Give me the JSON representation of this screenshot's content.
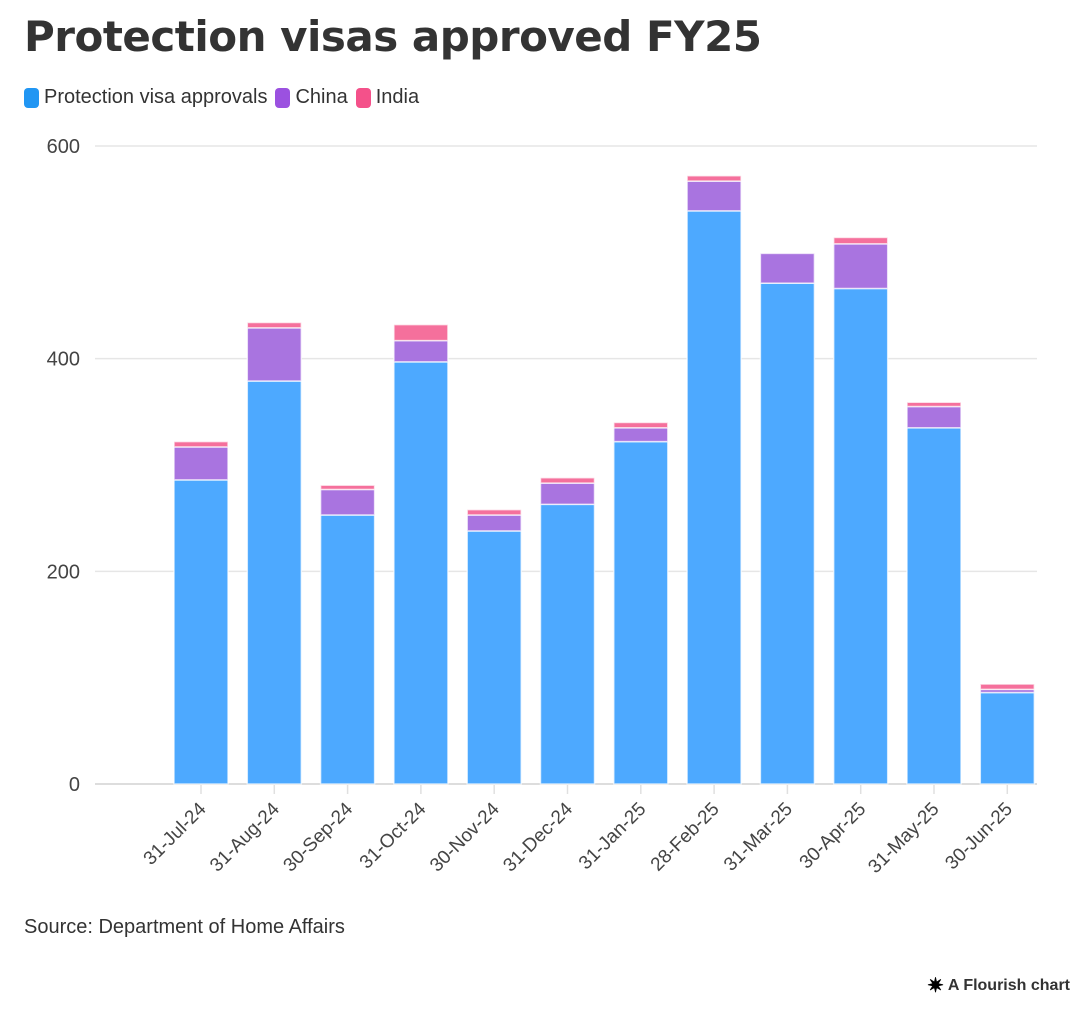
{
  "title": "Protection visas approved FY25",
  "source": "Source: Department of Home Affairs",
  "credit": "A Flourish chart",
  "colors": {
    "Protection visa approvals": "#4da9ff",
    "China": "#a974e0",
    "India": "#f5709c"
  },
  "chart_data": {
    "type": "bar",
    "stacked": true,
    "title": "Protection visas approved FY25",
    "xlabel": "",
    "ylabel": "",
    "ylim": [
      0,
      600
    ],
    "yticks": [
      0,
      200,
      400,
      600
    ],
    "grid": true,
    "legend_position": "top-left",
    "categories": [
      "31-Jul-24",
      "31-Aug-24",
      "30-Sep-24",
      "31-Oct-24",
      "30-Nov-24",
      "31-Dec-24",
      "31-Jan-25",
      "28-Feb-25",
      "31-Mar-25",
      "30-Apr-25",
      "31-May-25",
      "30-Jun-25"
    ],
    "series": [
      {
        "name": "Protection visa approvals",
        "values": [
          286,
          379,
          253,
          397,
          238,
          263,
          322,
          539,
          471,
          466,
          335,
          86
        ]
      },
      {
        "name": "China",
        "values": [
          31,
          50,
          24,
          20,
          15,
          20,
          13,
          28,
          28,
          42,
          20,
          3
        ]
      },
      {
        "name": "India",
        "values": [
          5,
          5,
          4,
          15,
          5,
          5,
          5,
          5,
          0,
          6,
          4,
          5
        ]
      }
    ]
  }
}
